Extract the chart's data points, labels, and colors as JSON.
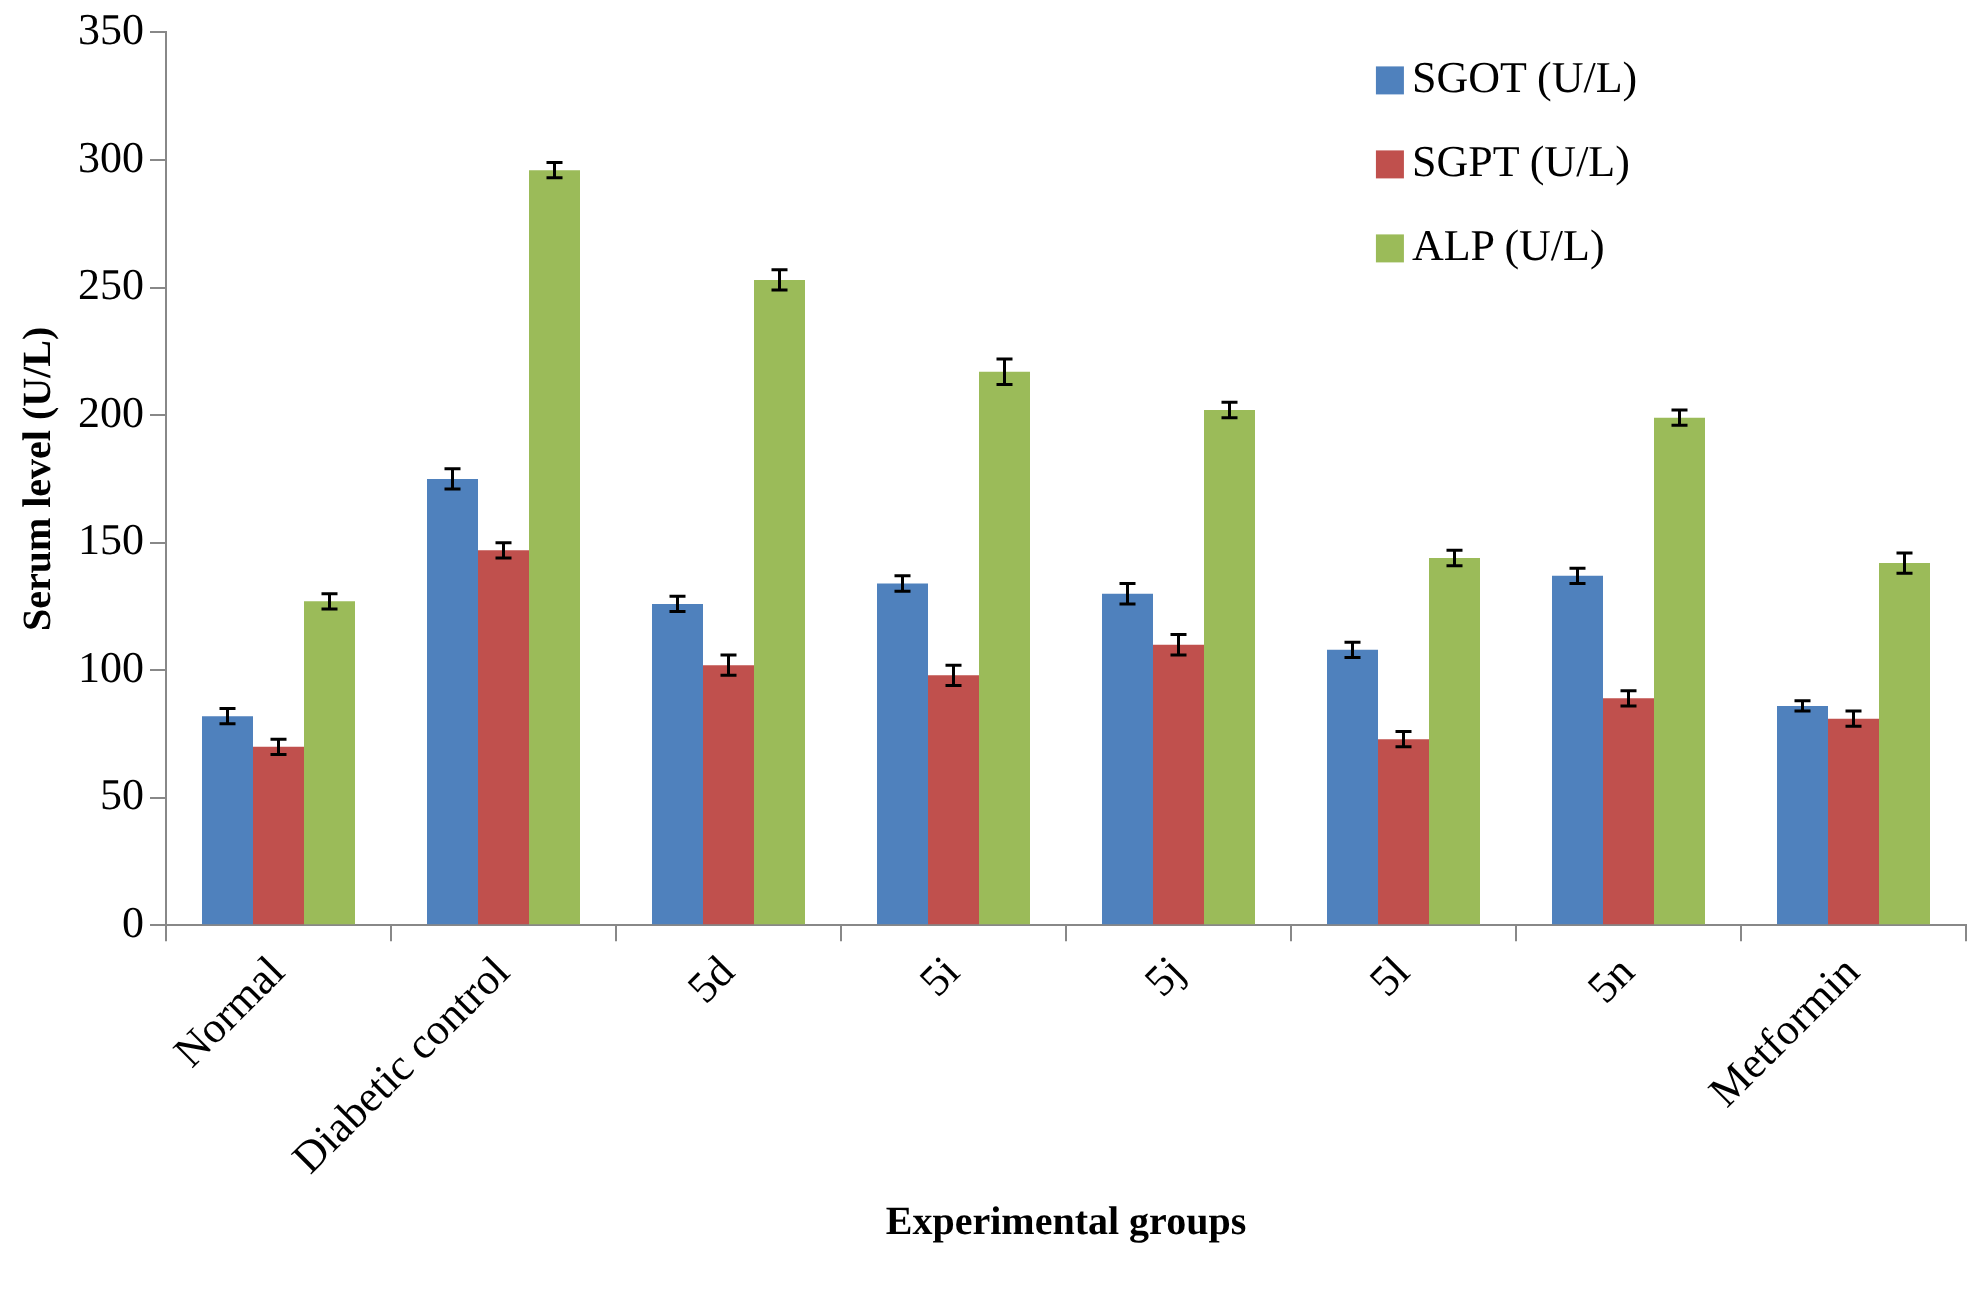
{
  "chart_data": {
    "type": "bar",
    "xlabel": "Experimental groups",
    "ylabel": "Serum level (U/L)",
    "categories": [
      "Normal",
      "Diabetic control",
      "5d",
      "5i",
      "5j",
      "5l",
      "5n",
      "Metformin"
    ],
    "series": [
      {
        "name": "SGOT (U/L)",
        "color": "#4f81bd",
        "values": [
          82,
          175,
          126,
          134,
          130,
          108,
          137,
          86
        ],
        "errors": [
          3,
          4,
          3,
          3,
          4,
          3,
          3,
          2
        ]
      },
      {
        "name": "SGPT (U/L)",
        "color": "#c0504d",
        "values": [
          70,
          147,
          102,
          98,
          110,
          73,
          89,
          81
        ],
        "errors": [
          3,
          3,
          4,
          4,
          4,
          3,
          3,
          3
        ]
      },
      {
        "name": "ALP (U/L)",
        "color": "#9bbb59",
        "values": [
          127,
          296,
          253,
          217,
          202,
          144,
          199,
          142
        ],
        "errors": [
          3,
          3,
          4,
          5,
          3,
          3,
          3,
          4
        ]
      }
    ],
    "ylim": [
      0,
      350
    ],
    "yticks": [
      0,
      50,
      100,
      150,
      200,
      250,
      300,
      350
    ],
    "grid": false,
    "legend": "top right"
  }
}
